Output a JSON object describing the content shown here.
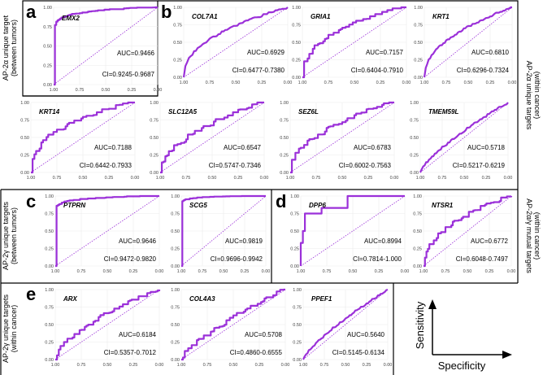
{
  "figure": {
    "side_labels": {
      "top_left": [
        "AP-2α unique target",
        "(between tumors)"
      ],
      "right_top": [
        "AP-2α unique targets",
        "(within cancer)"
      ],
      "mid_left": [
        "AP-2γ unique targets",
        "(between tumors)"
      ],
      "mid_right": [
        "AP-2α/γ mutual targets",
        "(within cancer)"
      ],
      "bottom_left": [
        "AP-2γ unique targets",
        "(within cancer)"
      ]
    },
    "panel_letters": [
      "a",
      "b",
      "c",
      "d",
      "e"
    ],
    "legend": {
      "y_label": "Sensitivity",
      "x_label": "Specificity"
    },
    "colors": {
      "curve": "#9b30d9",
      "diagonal": "#9b30d9",
      "grid": "#ebebeb",
      "frame": "#000000"
    }
  },
  "chart_data": [
    {
      "type": "line",
      "panel": "a",
      "title": "EMX2",
      "auc": "AUC=0.9466",
      "ci": "CI=0.9245-0.9687",
      "xlim": [
        1.0,
        0.0
      ],
      "ylim": [
        0.0,
        1.0
      ],
      "xticks": [
        "1.00",
        "0.75",
        "0.50",
        "0.25",
        "0.00"
      ],
      "yticks": [
        "0.00",
        "0.25",
        "0.50",
        "0.75",
        "1.00"
      ],
      "xlabel": "Specificity",
      "ylabel": "Sensitivity",
      "auc_value": 0.9466,
      "shape": "steep"
    },
    {
      "type": "line",
      "panel": "b",
      "title": "COL7A1",
      "auc": "AUC=0.6929",
      "ci": "CI=0.6477-0.7380",
      "xlim": [
        1.0,
        0.0
      ],
      "ylim": [
        0.0,
        1.0
      ],
      "xticks": [
        "1.00",
        "0.75",
        "0.50",
        "0.25",
        "0.00"
      ],
      "yticks": [
        "0.00",
        "0.25",
        "0.50",
        "0.75",
        "1.00"
      ],
      "xlabel": "Specificity",
      "ylabel": "Sensitivity",
      "auc_value": 0.6929,
      "shape": "smooth"
    },
    {
      "type": "line",
      "panel": "b",
      "title": "GRIA1",
      "auc": "AUC=0.7157",
      "ci": "CI=0.6404-0.7910",
      "xlim": [
        1.0,
        0.0
      ],
      "ylim": [
        0.0,
        1.0
      ],
      "xticks": [
        "1.00",
        "0.75",
        "0.50",
        "0.25",
        "0.00"
      ],
      "yticks": [
        "0.00",
        "0.25",
        "0.50",
        "0.75",
        "1.00"
      ],
      "xlabel": "Specificity",
      "ylabel": "Sensitivity",
      "auc_value": 0.7157,
      "shape": "steppy"
    },
    {
      "type": "line",
      "panel": "b",
      "title": "KRT1",
      "auc": "AUC=0.6810",
      "ci": "CI=0.6296-0.7324",
      "xlim": [
        1.0,
        0.0
      ],
      "ylim": [
        0.0,
        1.0
      ],
      "xticks": [
        "1.00",
        "0.75",
        "0.50",
        "0.25",
        "0.00"
      ],
      "yticks": [
        "0.00",
        "0.25",
        "0.50",
        "0.75",
        "1.00"
      ],
      "xlabel": "Specificity",
      "ylabel": "Sensitivity",
      "auc_value": 0.681,
      "shape": "smooth"
    },
    {
      "type": "line",
      "panel": "b",
      "title": "KRT14",
      "auc": "AUC=0.7188",
      "ci": "CI=0.6442-0.7933",
      "xlim": [
        1.0,
        0.0
      ],
      "ylim": [
        0.0,
        1.0
      ],
      "xticks": [
        "1.00",
        "0.75",
        "0.50",
        "0.25",
        "0.00"
      ],
      "yticks": [
        "0.00",
        "0.25",
        "0.50",
        "0.75",
        "1.00"
      ],
      "xlabel": "Specificity",
      "ylabel": "Sensitivity",
      "auc_value": 0.7188,
      "shape": "steppy"
    },
    {
      "type": "line",
      "panel": "b",
      "title": "SLC12A5",
      "auc": "AUC=0.6547",
      "ci": "CI=0.5747-0.7346",
      "xlim": [
        1.0,
        0.0
      ],
      "ylim": [
        0.0,
        1.0
      ],
      "xticks": [
        "1.00",
        "0.75",
        "0.50",
        "0.25",
        "0.00"
      ],
      "yticks": [
        "0.00",
        "0.25",
        "0.50",
        "0.75",
        "1.00"
      ],
      "xlabel": "Specificity",
      "ylabel": "Sensitivity",
      "auc_value": 0.6547,
      "shape": "steppy"
    },
    {
      "type": "line",
      "panel": "b",
      "title": "SEZ6L",
      "auc": "AUC=0.6783",
      "ci": "CI=0.6002-0.7563",
      "xlim": [
        1.0,
        0.0
      ],
      "ylim": [
        0.0,
        1.0
      ],
      "xticks": [
        "1.00",
        "0.75",
        "0.50",
        "0.25",
        "0.00"
      ],
      "yticks": [
        "0.00",
        "0.25",
        "0.50",
        "0.75",
        "1.00"
      ],
      "xlabel": "Specificity",
      "ylabel": "Sensitivity",
      "auc_value": 0.6783,
      "shape": "steppy"
    },
    {
      "type": "line",
      "panel": "b",
      "title": "TMEM59L",
      "auc": "AUC=0.5718",
      "ci": "CI=0.5217-0.6219",
      "xlim": [
        1.0,
        0.0
      ],
      "ylim": [
        0.0,
        1.0
      ],
      "xticks": [
        "1.00",
        "0.75",
        "0.50",
        "0.25",
        "0.00"
      ],
      "yticks": [
        "0.00",
        "0.25",
        "0.50",
        "0.75",
        "1.00"
      ],
      "xlabel": "Specificity",
      "ylabel": "Sensitivity",
      "auc_value": 0.5718,
      "shape": "smooth"
    },
    {
      "type": "line",
      "panel": "c",
      "title": "PTPRN",
      "auc": "AUC=0.9646",
      "ci": "CI=0.9472-0.9820",
      "xlim": [
        1.0,
        0.0
      ],
      "ylim": [
        0.0,
        1.0
      ],
      "xticks": [
        "1.00",
        "0.75",
        "0.50",
        "0.25",
        "0.00"
      ],
      "yticks": [
        "0.00",
        "0.25",
        "0.50",
        "0.75",
        "1.00"
      ],
      "xlabel": "Specificity",
      "ylabel": "Sensitivity",
      "auc_value": 0.9646,
      "shape": "steep"
    },
    {
      "type": "line",
      "panel": "c",
      "title": "SCG5",
      "auc": "AUC=0.9819",
      "ci": "CI=0.9696-0.9942",
      "xlim": [
        1.0,
        0.0
      ],
      "ylim": [
        0.0,
        1.0
      ],
      "xticks": [
        "1.00",
        "0.75",
        "0.50",
        "0.25",
        "0.00"
      ],
      "yticks": [
        "0.00",
        "0.25",
        "0.50",
        "0.75",
        "1.00"
      ],
      "xlabel": "Specificity",
      "ylabel": "Sensitivity",
      "auc_value": 0.9819,
      "shape": "steep"
    },
    {
      "type": "line",
      "panel": "d",
      "title": "DPP6",
      "auc": "AUC=0.8994",
      "ci": "CI=0.7814-1.000",
      "xlim": [
        1.0,
        0.0
      ],
      "ylim": [
        0.0,
        1.0
      ],
      "xticks": [
        "1.00",
        "0.75",
        "0.50",
        "0.25",
        "0.00"
      ],
      "yticks": [
        "0.00",
        "0.25",
        "0.50",
        "0.75",
        "1.00"
      ],
      "xlabel": "Specificity",
      "ylabel": "Sensitivity",
      "auc_value": 0.8994,
      "shape": "blocky"
    },
    {
      "type": "line",
      "panel": "d",
      "title": "NTSR1",
      "auc": "AUC=0.6772",
      "ci": "CI=0.6048-0.7497",
      "xlim": [
        1.0,
        0.0
      ],
      "ylim": [
        0.0,
        1.0
      ],
      "xticks": [
        "1.00",
        "0.75",
        "0.50",
        "0.25",
        "0.00"
      ],
      "yticks": [
        "0.00",
        "0.25",
        "0.50",
        "0.75",
        "1.00"
      ],
      "xlabel": "Specificity",
      "ylabel": "Sensitivity",
      "auc_value": 0.6772,
      "shape": "steppy"
    },
    {
      "type": "line",
      "panel": "e",
      "title": "ARX",
      "auc": "AUC=0.6184",
      "ci": "CI=0.5357-0.7012",
      "xlim": [
        1.0,
        0.0
      ],
      "ylim": [
        0.0,
        1.0
      ],
      "xticks": [
        "1.00",
        "0.75",
        "0.50",
        "0.25",
        "0.00"
      ],
      "yticks": [
        "0.00",
        "0.25",
        "0.50",
        "0.75",
        "1.00"
      ],
      "xlabel": "Specificity",
      "ylabel": "Sensitivity",
      "auc_value": 0.6184,
      "shape": "steppy"
    },
    {
      "type": "line",
      "panel": "e",
      "title": "COL4A3",
      "auc": "AUC=0.5708",
      "ci": "CI=0.4860-0.6555",
      "xlim": [
        1.0,
        0.0
      ],
      "ylim": [
        0.0,
        1.0
      ],
      "xticks": [
        "1.00",
        "0.75",
        "0.50",
        "0.25",
        "0.00"
      ],
      "yticks": [
        "0.00",
        "0.25",
        "0.50",
        "0.75",
        "1.00"
      ],
      "xlabel": "Specificity",
      "ylabel": "Sensitivity",
      "auc_value": 0.5708,
      "shape": "steppy"
    },
    {
      "type": "line",
      "panel": "e",
      "title": "PPEF1",
      "auc": "AUC=0.5640",
      "ci": "CI=0.5145-0.6134",
      "xlim": [
        1.0,
        0.0
      ],
      "ylim": [
        0.0,
        1.0
      ],
      "xticks": [
        "1.00",
        "0.75",
        "0.50",
        "0.25",
        "0.00"
      ],
      "yticks": [
        "0.00",
        "0.25",
        "0.50",
        "0.75",
        "1.00"
      ],
      "xlabel": "Specificity",
      "ylabel": "Sensitivity",
      "auc_value": 0.564,
      "shape": "smooth"
    }
  ]
}
